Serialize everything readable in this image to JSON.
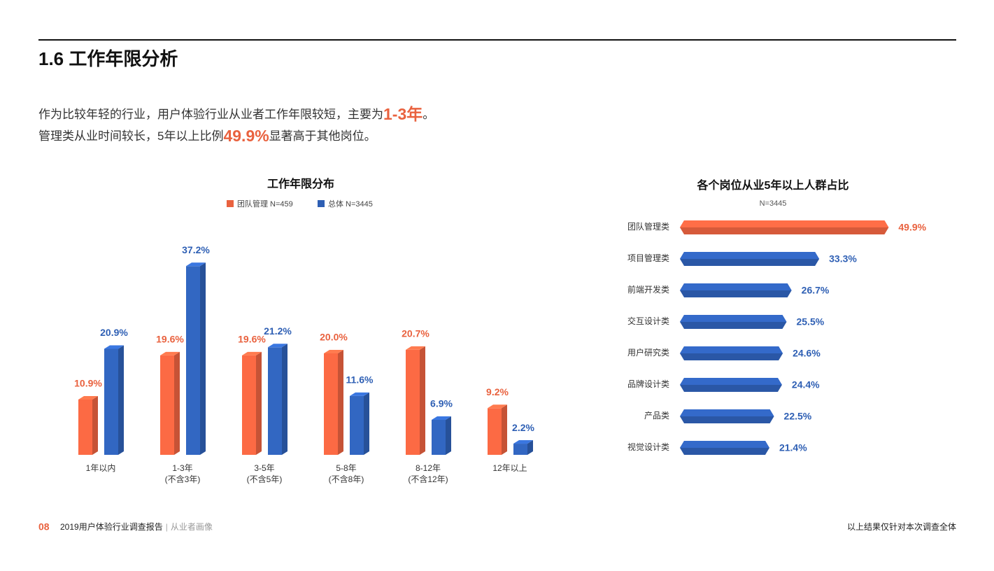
{
  "header": {
    "title": "1.6 工作年限分析"
  },
  "intro": [
    [
      "作为比较年轻的行业，用户体验行业从业者工作年限较短，主要为",
      "1-3年",
      "。"
    ],
    [
      "管理类从业时间较长，5年以上比例",
      "49.9%",
      "显著高于其他岗位。"
    ]
  ],
  "chart_data": [
    {
      "type": "bar",
      "title": "工作年限分布",
      "categories": [
        "1年以内",
        "1-3年",
        "3-5年",
        "5-8年",
        "8-12年",
        "12年以上"
      ],
      "category_notes": [
        null,
        "(不含3年)",
        "(不含5年)",
        "(不含8年)",
        "(不含12年)",
        null
      ],
      "series": [
        {
          "name": "团队管理 N=459",
          "color": "#e9623f",
          "values": [
            10.9,
            19.6,
            19.6,
            20.0,
            20.7,
            9.2
          ],
          "value_labels": [
            "10.9%",
            "19.6%",
            "19.6%",
            "20.0%",
            "20.7%",
            "9.2%"
          ]
        },
        {
          "name": "总体 N=3445",
          "color": "#2e5fb4",
          "values": [
            20.9,
            37.2,
            21.2,
            11.6,
            6.9,
            2.2
          ],
          "value_labels": [
            "20.9%",
            "37.2%",
            "21.2%",
            "11.6%",
            "6.9%",
            "2.2%"
          ]
        }
      ]
    },
    {
      "type": "hbar",
      "title": "各个岗位从业5年以上人群占比",
      "subtitle": "N=3445",
      "categories": [
        "团队管理类",
        "项目管理类",
        "前端开发类",
        "交互设计类",
        "用户研究类",
        "品牌设计类",
        "产品类",
        "视觉设计类"
      ],
      "values": [
        49.9,
        33.3,
        26.7,
        25.5,
        24.6,
        24.4,
        22.5,
        21.4
      ],
      "value_labels": [
        "49.9%",
        "33.3%",
        "26.7%",
        "25.5%",
        "24.6%",
        "24.4%",
        "22.5%",
        "21.4%"
      ],
      "colors": [
        "#e9623f",
        "#2e5fb4",
        "#2e5fb4",
        "#2e5fb4",
        "#2e5fb4",
        "#2e5fb4",
        "#2e5fb4",
        "#2e5fb4"
      ]
    }
  ],
  "footer": {
    "page": "08",
    "report": "2019用户体验行业调查报告",
    "separator": "|",
    "section": "从业者画像",
    "note": "以上结果仅针对本次调查全体"
  }
}
